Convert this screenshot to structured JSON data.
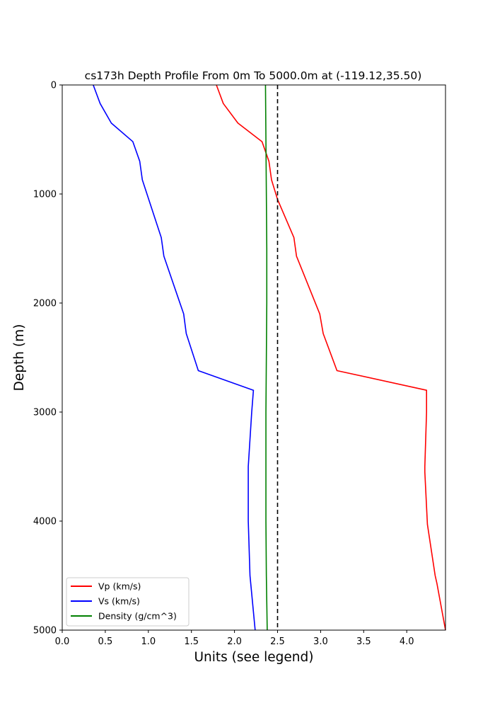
{
  "chart_data": {
    "type": "line",
    "title": "cs173h Depth Profile From 0m To 5000.0m at (-119.12,35.50)",
    "xlabel": "Units (see legend)",
    "ylabel": "Depth (m)",
    "xlim": [
      0,
      4.45
    ],
    "ylim": [
      0,
      5000
    ],
    "y_inverted": true,
    "x_ticks": [
      "0.0",
      "0.5",
      "1.0",
      "1.5",
      "2.0",
      "2.5",
      "3.0",
      "3.5",
      "4.0"
    ],
    "x_tick_values": [
      0,
      0.5,
      1.0,
      1.5,
      2.0,
      2.5,
      3.0,
      3.5,
      4.0
    ],
    "y_ticks": [
      "0",
      "1000",
      "2000",
      "3000",
      "4000",
      "5000"
    ],
    "y_tick_values": [
      0,
      1000,
      2000,
      3000,
      4000,
      5000
    ],
    "grid": false,
    "legend_position": "lower-left",
    "reference_line": {
      "x": 2.5,
      "style": "dashed",
      "color": "#000000"
    },
    "series": [
      {
        "name": "Vp (km/s)",
        "color": "#ff0000",
        "x": [
          1.79,
          1.87,
          2.04,
          2.32,
          2.4,
          2.43,
          2.5,
          2.69,
          2.72,
          2.99,
          3.03,
          3.19,
          4.23,
          4.23,
          4.21,
          4.21,
          4.24,
          4.33,
          4.35,
          4.45
        ],
        "y": [
          0,
          170,
          350,
          520,
          700,
          870,
          1050,
          1400,
          1570,
          2100,
          2280,
          2620,
          2800,
          3000,
          3500,
          3550,
          4030,
          4500,
          4570,
          5000
        ]
      },
      {
        "name": "Vs (km/s)",
        "color": "#0000ff",
        "x": [
          0.36,
          0.44,
          0.57,
          0.82,
          0.9,
          0.93,
          1.15,
          1.18,
          1.41,
          1.44,
          1.58,
          2.22,
          2.2,
          2.16,
          2.16,
          2.18,
          2.24
        ],
        "y": [
          0,
          170,
          350,
          520,
          700,
          870,
          1400,
          1570,
          2100,
          2280,
          2620,
          2800,
          3000,
          3500,
          4000,
          4500,
          5000
        ]
      },
      {
        "name": "Density (g/cm^3)",
        "color": "#008000",
        "x": [
          2.36,
          2.365,
          2.37,
          2.375,
          2.375,
          2.37,
          2.365,
          2.365,
          2.37,
          2.38
        ],
        "y": [
          0,
          500,
          1000,
          1500,
          2000,
          2500,
          3000,
          4000,
          4500,
          5000
        ]
      }
    ]
  }
}
